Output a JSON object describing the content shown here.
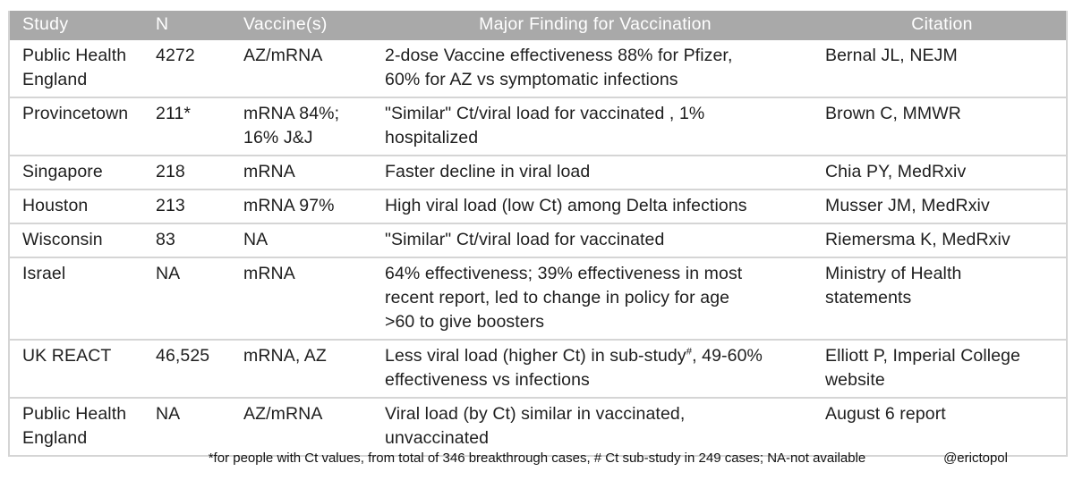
{
  "colors": {
    "header_bg": "#a9a9a9",
    "header_text": "#ffffff",
    "row_divider": "#d5d5d5",
    "body_text": "#1e1e1e",
    "page_bg": "#ffffff"
  },
  "table": {
    "columns": [
      {
        "key": "study",
        "label": "Study",
        "align": "left"
      },
      {
        "key": "n",
        "label": "N",
        "align": "left"
      },
      {
        "key": "vaccines",
        "label": "Vaccine(s)",
        "align": "left"
      },
      {
        "key": "finding",
        "label": "Major Finding for Vaccination",
        "align": "center"
      },
      {
        "key": "citation",
        "label": "Citation",
        "align": "center"
      }
    ],
    "rows": [
      {
        "study": "Public Health\nEngland",
        "n": "4272",
        "vaccines": "AZ/mRNA",
        "finding": [
          {
            "t": "2-dose Vaccine effectiveness 88% for Pfizer,\n60% for AZ vs symptomatic infections"
          }
        ],
        "citation": "Bernal JL, NEJM"
      },
      {
        "study": "Provincetown",
        "n": "211*",
        "vaccines": "mRNA 84%;\n16% J&J",
        "finding": [
          {
            "t": "\"Similar\" Ct/viral load for vaccinated , 1%\nhospitalized"
          }
        ],
        "citation": "Brown C, MMWR"
      },
      {
        "study": "Singapore",
        "n": "218",
        "vaccines": "mRNA",
        "finding": [
          {
            "t": "Faster decline in viral load"
          }
        ],
        "citation": "Chia PY, MedRxiv"
      },
      {
        "study": "Houston",
        "n": "213",
        "vaccines": "mRNA 97%",
        "finding": [
          {
            "t": "High viral load (low Ct) among Delta infections"
          }
        ],
        "citation": "Musser JM, MedRxiv"
      },
      {
        "study": "Wisconsin",
        "n": "83",
        "vaccines": "NA",
        "finding": [
          {
            "t": "\"Similar\" Ct/viral load for vaccinated"
          }
        ],
        "citation": "Riemersma K, MedRxiv"
      },
      {
        "study": "Israel",
        "n": "NA",
        "vaccines": "mRNA",
        "finding": [
          {
            "t": "64% effectiveness; 39% effectiveness in most\nrecent report, led to change in policy for age\n>60 to give boosters"
          }
        ],
        "citation": "Ministry of Health\nstatements"
      },
      {
        "study": "UK REACT",
        "n": "46,525",
        "vaccines": "mRNA, AZ",
        "finding": [
          {
            "t": "Less viral load (higher Ct) in sub-study"
          },
          {
            "t": "#",
            "sup": true
          },
          {
            "t": ", 49-60%\neffectiveness vs infections"
          }
        ],
        "citation": "Elliott P, Imperial College\nwebsite"
      },
      {
        "study": "Public Health\nEngland",
        "n": "NA",
        "vaccines": "AZ/mRNA",
        "finding": [
          {
            "t": "Viral load (by Ct) similar in vaccinated,\nunvaccinated"
          }
        ],
        "citation": "August 6 report"
      }
    ]
  },
  "footer": {
    "note": "*for people with Ct values, from total of 346 breakthrough cases, # Ct sub-study in 249 cases; NA-not available",
    "handle": "@erictopol"
  }
}
